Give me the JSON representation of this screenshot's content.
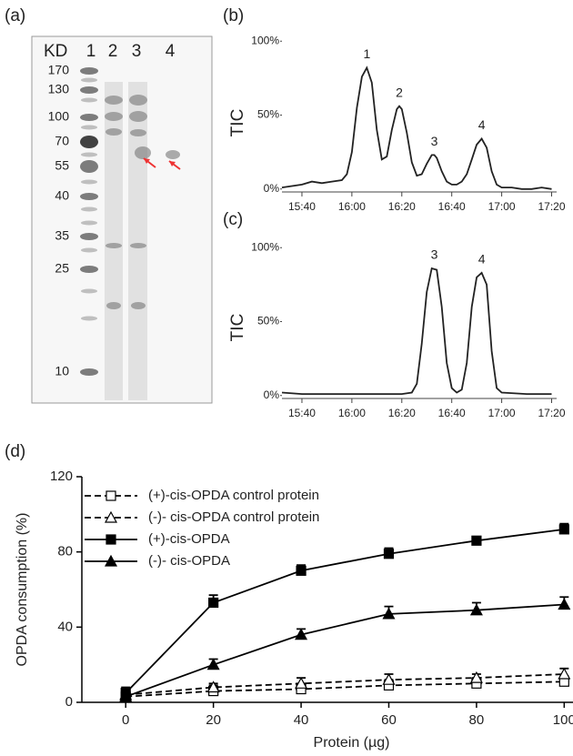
{
  "gel": {
    "panel_label": "(a)",
    "lane_header": "KD",
    "lanes": [
      "1",
      "2",
      "3",
      "4"
    ],
    "markers": [
      "170",
      "130",
      "100",
      "70",
      "55",
      "40",
      "35",
      "25",
      "10"
    ]
  },
  "chart_data": [
    {
      "type": "chromatogram",
      "panel_label": "(b)",
      "ylabel": "TIC",
      "color": "#222222",
      "x": [
        932,
        940,
        944,
        948,
        952,
        956,
        958,
        960,
        962,
        964,
        966,
        968,
        970,
        972,
        974,
        976,
        978,
        979,
        980,
        982,
        984,
        986,
        988,
        990,
        992,
        993,
        994,
        996,
        998,
        1000,
        1002,
        1004,
        1006,
        1008,
        1010,
        1012,
        1014,
        1016,
        1018,
        1020,
        1024,
        1028,
        1032,
        1036,
        1040
      ],
      "values": [
        1,
        3,
        5,
        4,
        5,
        6,
        10,
        25,
        55,
        76,
        82,
        72,
        40,
        20,
        22,
        40,
        54,
        56,
        54,
        38,
        18,
        9,
        10,
        17,
        23,
        23,
        21,
        12,
        5,
        3,
        3,
        5,
        10,
        20,
        30,
        34,
        28,
        12,
        3,
        1,
        1,
        0,
        0,
        1,
        0
      ],
      "xlim": [
        932,
        1042
      ],
      "xticks": [
        {
          "value": 940,
          "label": "15:40"
        },
        {
          "value": 960,
          "label": "16:00"
        },
        {
          "value": 980,
          "label": "16:20"
        },
        {
          "value": 1000,
          "label": "16:40"
        },
        {
          "value": 1020,
          "label": "17:00"
        },
        {
          "value": 1040,
          "label": "17:20"
        }
      ],
      "ylim": [
        -2,
        110
      ],
      "yticks": [
        {
          "value": 0,
          "label": "0%"
        },
        {
          "value": 50,
          "label": "50%"
        },
        {
          "value": 100,
          "label": "100%"
        }
      ],
      "peaks": [
        {
          "label": "1",
          "x": 966
        },
        {
          "label": "2",
          "x": 979
        },
        {
          "label": "3",
          "x": 993
        },
        {
          "label": "4",
          "x": 1012
        }
      ]
    },
    {
      "type": "chromatogram",
      "panel_label": "(c)",
      "ylabel": "TIC",
      "color": "#222222",
      "x": [
        932,
        940,
        960,
        980,
        984,
        986,
        988,
        990,
        992,
        994,
        996,
        998,
        1000,
        1002,
        1004,
        1006,
        1008,
        1010,
        1012,
        1014,
        1016,
        1018,
        1020,
        1030,
        1040
      ],
      "values": [
        2,
        1,
        1,
        1,
        2,
        8,
        35,
        70,
        86,
        85,
        60,
        22,
        5,
        2,
        4,
        22,
        60,
        80,
        83,
        75,
        30,
        5,
        2,
        1,
        1
      ],
      "xlim": [
        932,
        1042
      ],
      "xticks": [
        {
          "value": 940,
          "label": "15:40"
        },
        {
          "value": 960,
          "label": "16:00"
        },
        {
          "value": 980,
          "label": "16:20"
        },
        {
          "value": 1000,
          "label": "16:40"
        },
        {
          "value": 1020,
          "label": "17:00"
        },
        {
          "value": 1040,
          "label": "17:20"
        }
      ],
      "ylim": [
        -2,
        110
      ],
      "yticks": [
        {
          "value": 0,
          "label": "0%"
        },
        {
          "value": 50,
          "label": "50%"
        },
        {
          "value": 100,
          "label": "100%"
        }
      ],
      "peaks": [
        {
          "label": "3",
          "x": 993
        },
        {
          "label": "4",
          "x": 1012
        }
      ]
    },
    {
      "type": "line",
      "panel_label": "(d)",
      "xlabel": "Protein (µg)",
      "ylabel": "OPDA consumption (%)",
      "x": [
        0,
        20,
        40,
        60,
        80,
        100
      ],
      "xlim": [
        -10,
        113
      ],
      "xticks": [
        0,
        20,
        40,
        60,
        80,
        100
      ],
      "ylim": [
        0,
        120
      ],
      "yticks": [
        0,
        40,
        80,
        120
      ],
      "legend": "upper left",
      "series": [
        {
          "name": "(+)-cis-OPDA control protein",
          "color": "#000000",
          "dash": true,
          "marker": "square",
          "filled": false,
          "values": [
            3,
            6,
            7,
            9,
            10,
            11
          ],
          "errors": [
            2,
            3,
            3,
            3,
            3,
            3
          ]
        },
        {
          "name": "(-)- cis-OPDA control protein",
          "color": "#000000",
          "dash": true,
          "marker": "triangle",
          "filled": false,
          "values": [
            4,
            8,
            10,
            12,
            13,
            15
          ],
          "errors": [
            2,
            2,
            3,
            3,
            2,
            3
          ]
        },
        {
          "name": "(+)-cis-OPDA",
          "color": "#000000",
          "dash": false,
          "marker": "square",
          "filled": true,
          "values": [
            5,
            53,
            70,
            79,
            86,
            92
          ],
          "errors": [
            3,
            4,
            3,
            3,
            2,
            3
          ]
        },
        {
          "name": "(-)- cis-OPDA",
          "color": "#000000",
          "dash": false,
          "marker": "triangle",
          "filled": true,
          "values": [
            3,
            20,
            36,
            47,
            49,
            52
          ],
          "errors": [
            2,
            3,
            3,
            4,
            4,
            4
          ]
        }
      ]
    }
  ]
}
